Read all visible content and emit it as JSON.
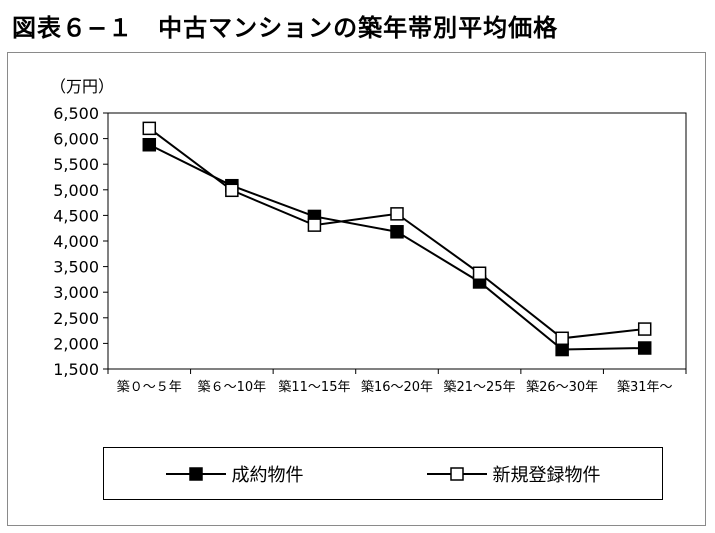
{
  "figure": {
    "title": "図表６−１　中古マンションの築年帯別平均価格"
  },
  "chart_data": {
    "type": "line",
    "title": "図表６−１　中古マンションの築年帯別平均価格",
    "ylabel": "（万円）",
    "xlabel": "",
    "ylim": [
      1500,
      6500
    ],
    "y_ticks": [
      1500,
      2000,
      2500,
      3000,
      3500,
      4000,
      4500,
      5000,
      5500,
      6000,
      6500
    ],
    "y_tick_labels": [
      "1,500",
      "2,000",
      "2,500",
      "3,000",
      "3,500",
      "4,000",
      "4,500",
      "5,000",
      "5,500",
      "6,000",
      "6,500"
    ],
    "categories": [
      "築０～５年",
      "築６～10年",
      "築11～15年",
      "築16～20年",
      "築21～25年",
      "築26～30年",
      "築31年～"
    ],
    "grid": false,
    "legend_position": "bottom",
    "series": [
      {
        "name": "成約物件",
        "marker": "filled-square",
        "color": "#000000",
        "values": [
          5880,
          5080,
          4480,
          4180,
          3200,
          1880,
          1910
        ]
      },
      {
        "name": "新規登録物件",
        "marker": "open-square",
        "color": "#000000",
        "values": [
          6200,
          4990,
          4310,
          4530,
          3370,
          2100,
          2280
        ]
      }
    ]
  }
}
